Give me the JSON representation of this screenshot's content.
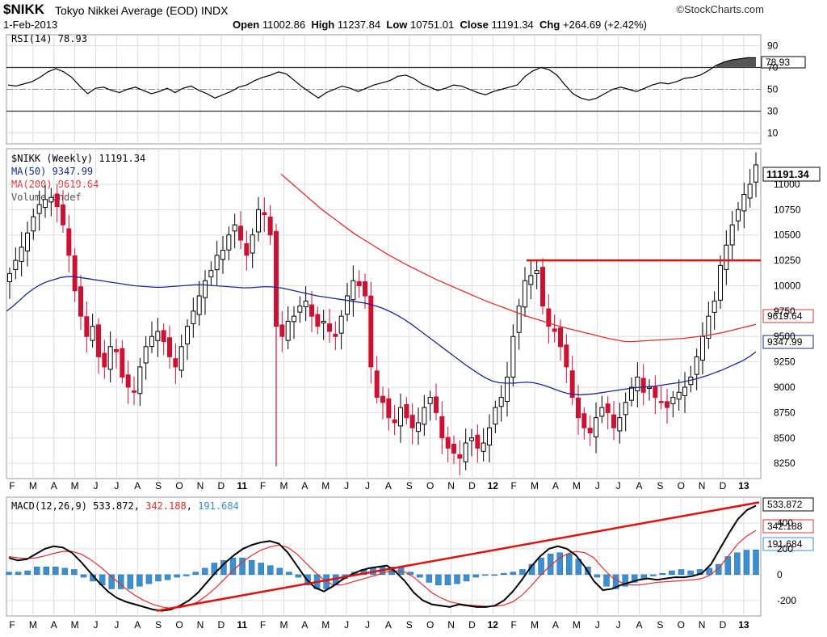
{
  "header": {
    "symbol": "$NIKK",
    "name": "Tokyo Nikkei Average (EOD)",
    "exchange": "INDX",
    "date": "1-Feb-2013",
    "open_label": "Open",
    "open": "11002.86",
    "high_label": "High",
    "high": "11237.84",
    "low_label": "Low",
    "low": "10751.01",
    "close_label": "Close",
    "close": "11191.34",
    "chg_label": "Chg",
    "chg": "+264.69 (+2.42%)",
    "logo": "©StockCharts.com"
  },
  "colors": {
    "up": "#000000",
    "down": "#cc1133",
    "ma50": "#1a2a8a",
    "ma200": "#e03030",
    "macd_hist": "#3b8fd0",
    "trendline": "#e01010",
    "grid": "#dddddd"
  },
  "chart_data": [
    {
      "panel": "RSI",
      "type": "line",
      "title": "RSI(14) 78.93",
      "current": 78.93,
      "current_label": "78.93",
      "ylim": [
        0,
        100
      ],
      "yticks": [
        10,
        30,
        50,
        70,
        90
      ],
      "reference_lines": [
        30,
        50,
        70
      ],
      "values": [
        54,
        53,
        55,
        57,
        61,
        66,
        69,
        66,
        61,
        53,
        46,
        51,
        52,
        49,
        47,
        50,
        52,
        49,
        46,
        48,
        51,
        47,
        51,
        53,
        49,
        46,
        42,
        45,
        48,
        52,
        54,
        58,
        61,
        63,
        66,
        64,
        58,
        52,
        47,
        42,
        47,
        50,
        53,
        51,
        48,
        51,
        54,
        56,
        58,
        62,
        63,
        60,
        55,
        52,
        49,
        51,
        54,
        53,
        50,
        47,
        45,
        48,
        50,
        52,
        54,
        62,
        67,
        70,
        68,
        63,
        54,
        46,
        42,
        40,
        42,
        46,
        50,
        52,
        50,
        48,
        51,
        54,
        56,
        55,
        57,
        60,
        61,
        63,
        67,
        72,
        75,
        77,
        78,
        79,
        78.93
      ]
    },
    {
      "panel": "Price",
      "type": "candlestick",
      "title": "$NIKK (Weekly) 11191.34",
      "legend": [
        {
          "label": "$NIKK (Weekly) 11191.34"
        },
        {
          "label": "MA(50) 9347.99",
          "color": "#1a2a8a"
        },
        {
          "label": "MA(200) 9619.64",
          "color": "#e03030"
        },
        {
          "label": "Volume undef"
        }
      ],
      "ylim": [
        8100,
        11350
      ],
      "yticks": [
        8250,
        8500,
        8750,
        9000,
        9250,
        9500,
        9750,
        10000,
        10250,
        10500,
        10750,
        11000
      ],
      "ytick_labels": [
        "8250",
        "8500",
        "8750",
        "9000",
        "9250",
        "9500",
        "9750",
        "10000",
        "10250",
        "10500",
        "10750",
        "11000"
      ],
      "last_label": "11191.34",
      "ma50_label": "9347.99",
      "ma200_label": "9619.64",
      "resistance_line": 10250,
      "close": [
        10120,
        10250,
        10380,
        10520,
        10680,
        10800,
        10850,
        10870,
        10780,
        10600,
        10300,
        9950,
        9700,
        9500,
        9600,
        9300,
        9200,
        9400,
        9350,
        9100,
        9000,
        8950,
        9200,
        9400,
        9500,
        9550,
        9450,
        9300,
        9200,
        9400,
        9600,
        9750,
        9900,
        10050,
        10150,
        10300,
        10350,
        10500,
        10600,
        10450,
        10300,
        10500,
        10750,
        10700,
        10500,
        9600,
        9500,
        9650,
        9700,
        9800,
        9850,
        9700,
        9600,
        9650,
        9550,
        9500,
        9700,
        9900,
        10050,
        10000,
        9900,
        9200,
        8900,
        8850,
        8700,
        8650,
        8800,
        8700,
        8600,
        8650,
        8800,
        8900,
        8750,
        8500,
        8400,
        8350,
        8300,
        8450,
        8500,
        8400,
        8450,
        8600,
        8800,
        8900,
        9100,
        9500,
        9800,
        10050,
        10100,
        10150,
        9800,
        9600,
        9550,
        9400,
        9200,
        8900,
        8700,
        8600,
        8550,
        8700,
        8800,
        8750,
        8600,
        8700,
        8850,
        9000,
        9100,
        8950,
        9000,
        8900,
        8850,
        8800,
        8900,
        8950,
        9000,
        9100,
        9300,
        9500,
        9700,
        9850,
        10200,
        10400,
        10600,
        10750,
        10900,
        11000,
        11191.34
      ],
      "ma50": [
        9750,
        9800,
        9860,
        9920,
        9970,
        10010,
        10040,
        10060,
        10080,
        10090,
        10090,
        10080,
        10070,
        10060,
        10050,
        10040,
        10030,
        10020,
        10010,
        10000,
        9995,
        9990,
        9985,
        9985,
        9990,
        9995,
        10000,
        10005,
        10010,
        10010,
        10005,
        10000,
        9995,
        9990,
        9985,
        9980,
        9980,
        9985,
        9990,
        9990,
        9985,
        9975,
        9960,
        9945,
        9930,
        9915,
        9900,
        9890,
        9880,
        9870,
        9860,
        9850,
        9840,
        9830,
        9815,
        9795,
        9770,
        9740,
        9705,
        9665,
        9620,
        9570,
        9520,
        9470,
        9420,
        9370,
        9320,
        9270,
        9220,
        9175,
        9130,
        9090,
        9060,
        9045,
        9040,
        9040,
        9045,
        9050,
        9045,
        9030,
        9010,
        8985,
        8960,
        8940,
        8930,
        8925,
        8930,
        8935,
        8945,
        8955,
        8965,
        8975,
        8985,
        8995,
        9000,
        9005,
        9010,
        9020,
        9030,
        9040,
        9050,
        9065,
        9080,
        9100,
        9120,
        9145,
        9170,
        9200,
        9230,
        9260,
        9300,
        9347.99
      ],
      "ma200": [
        11100,
        11030,
        10960,
        10890,
        10820,
        10750,
        10690,
        10630,
        10570,
        10510,
        10460,
        10410,
        10360,
        10310,
        10265,
        10220,
        10180,
        10140,
        10100,
        10060,
        10025,
        9990,
        9955,
        9920,
        9885,
        9850,
        9820,
        9790,
        9760,
        9730,
        9700,
        9675,
        9650,
        9625,
        9600,
        9580,
        9560,
        9540,
        9520,
        9500,
        9480,
        9465,
        9450,
        9450,
        9455,
        9460,
        9465,
        9470,
        9475,
        9480,
        9490,
        9500,
        9510,
        9525,
        9540,
        9560,
        9580,
        9600,
        9619.64
      ]
    },
    {
      "panel": "MACD",
      "type": "line+bar",
      "title": "MACD(12,26,9)",
      "legend": [
        {
          "label": "MACD(12,26,9) 533.872",
          "color": "#000000"
        },
        {
          "label": "342.188",
          "color": "#e03030"
        },
        {
          "label": "191.684",
          "color": "#3b8fd0"
        }
      ],
      "ylim": [
        -320,
        600
      ],
      "yticks": [
        -200,
        0,
        200,
        400
      ],
      "ytick_labels": [
        "-200",
        "0",
        "200",
        "400"
      ],
      "macd_label": "533.872",
      "signal_label": "342.188",
      "hist_label": "191.684",
      "macd": [
        130,
        110,
        120,
        160,
        200,
        220,
        210,
        170,
        100,
        20,
        -60,
        -130,
        -180,
        -210,
        -230,
        -250,
        -270,
        -280,
        -270,
        -240,
        -200,
        -140,
        -60,
        20,
        90,
        150,
        200,
        230,
        250,
        260,
        240,
        170,
        70,
        -30,
        -100,
        -130,
        -90,
        -40,
        0,
        30,
        50,
        60,
        70,
        20,
        -50,
        -140,
        -200,
        -230,
        -240,
        -250,
        -230,
        -240,
        -250,
        -250,
        -240,
        -200,
        -130,
        -40,
        60,
        140,
        200,
        220,
        200,
        150,
        60,
        -50,
        -120,
        -110,
        -80,
        -60,
        -40,
        -30,
        -40,
        -30,
        -20,
        -20,
        -10,
        10,
        80,
        200,
        320,
        430,
        500,
        533.872
      ],
      "signal": [
        140,
        130,
        125,
        130,
        145,
        165,
        180,
        180,
        160,
        120,
        70,
        10,
        -50,
        -110,
        -160,
        -200,
        -230,
        -250,
        -260,
        -255,
        -240,
        -210,
        -160,
        -100,
        -30,
        40,
        100,
        150,
        190,
        215,
        230,
        210,
        160,
        90,
        20,
        -40,
        -80,
        -80,
        -60,
        -40,
        -20,
        0,
        20,
        30,
        20,
        -20,
        -80,
        -140,
        -180,
        -210,
        -225,
        -235,
        -240,
        -245,
        -245,
        -235,
        -210,
        -160,
        -90,
        -10,
        60,
        120,
        160,
        180,
        170,
        130,
        50,
        -20,
        -60,
        -80,
        -80,
        -70,
        -60,
        -55,
        -50,
        -45,
        -40,
        -30,
        0,
        60,
        150,
        240,
        300,
        342.188
      ],
      "hist": [
        20,
        20,
        30,
        60,
        60,
        60,
        50,
        40,
        -20,
        -50,
        -80,
        -110,
        -110,
        -110,
        -90,
        -70,
        -50,
        -40,
        -20,
        -10,
        20,
        50,
        90,
        110,
        130,
        130,
        110,
        90,
        70,
        50,
        20,
        -20,
        -80,
        -110,
        -110,
        -80,
        -30,
        20,
        40,
        50,
        60,
        60,
        60,
        20,
        -20,
        -60,
        -80,
        -80,
        -70,
        -50,
        -20,
        0,
        0,
        10,
        20,
        40,
        80,
        130,
        160,
        170,
        160,
        120,
        60,
        -20,
        -90,
        -110,
        -90,
        -60,
        -30,
        -10,
        10,
        30,
        40,
        30,
        40,
        50,
        80,
        140,
        170,
        190,
        191.684
      ]
    },
    {
      "panel": "Time axis",
      "type": "axis",
      "month_labels": [
        "F",
        "M",
        "A",
        "M",
        "J",
        "J",
        "A",
        "S",
        "O",
        "N",
        "D",
        "11",
        "F",
        "M",
        "A",
        "M",
        "J",
        "J",
        "A",
        "S",
        "O",
        "N",
        "D",
        "12",
        "F",
        "M",
        "A",
        "M",
        "J",
        "J",
        "A",
        "S",
        "O",
        "N",
        "D",
        "13"
      ],
      "year_labels": [
        "11",
        "12",
        "13"
      ]
    }
  ]
}
